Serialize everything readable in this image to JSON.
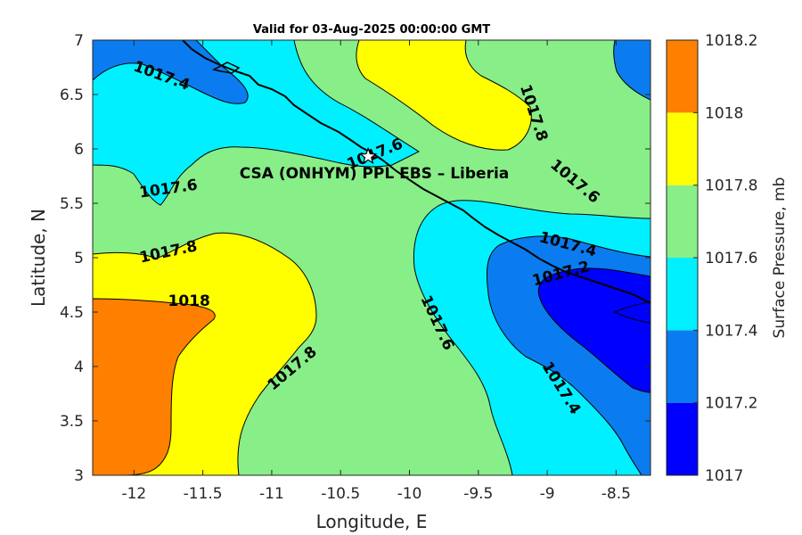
{
  "chart_data": {
    "type": "contour",
    "title": "Valid for 03-Aug-2025 00:00:00 GMT",
    "xlabel": "Longitude, E",
    "ylabel": "Latitude, N",
    "xlim": [
      -12.3,
      -8.25
    ],
    "ylim": [
      3,
      7
    ],
    "xticks": [
      -12,
      -11.5,
      -11,
      -10.5,
      -10,
      -9.5,
      -9,
      -8.5
    ],
    "yticks": [
      3,
      3.5,
      4,
      4.5,
      5,
      5.5,
      6,
      6.5,
      7
    ],
    "colorbar": {
      "label": "Surface Pressure, mb",
      "levels": [
        1017,
        1017.2,
        1017.4,
        1017.6,
        1017.8,
        1018,
        1018.2
      ],
      "colors": [
        "#0000ff",
        "#0a7cf0",
        "#00f0ff",
        "#88ee88",
        "#ffff00",
        "#ff8000",
        "#ff0000"
      ]
    },
    "contour_labels": [
      {
        "text": "1017.4",
        "lon": -11.8,
        "lat": 6.67,
        "angle": 20
      },
      {
        "text": "1017.6",
        "lon": -11.75,
        "lat": 5.63,
        "angle": -8
      },
      {
        "text": "1017.8",
        "lon": -11.75,
        "lat": 5.05,
        "angle": -12
      },
      {
        "text": "1018",
        "lon": -11.6,
        "lat": 4.6,
        "angle": 0
      },
      {
        "text": "1017.8",
        "lon": -10.85,
        "lat": 3.98,
        "angle": -40
      },
      {
        "text": "1017.6",
        "lon": -10.25,
        "lat": 5.95,
        "angle": -22
      },
      {
        "text": "1017.8",
        "lon": -9.1,
        "lat": 6.33,
        "angle": 72
      },
      {
        "text": "1017.6",
        "lon": -8.8,
        "lat": 5.7,
        "angle": 40
      },
      {
        "text": "1017.6",
        "lon": -9.8,
        "lat": 4.4,
        "angle": 65
      },
      {
        "text": "1017.4",
        "lon": -8.85,
        "lat": 5.12,
        "angle": 15
      },
      {
        "text": "1017.2",
        "lon": -8.9,
        "lat": 4.85,
        "angle": -15
      },
      {
        "text": "1017.4",
        "lon": -8.9,
        "lat": 3.8,
        "angle": 58
      }
    ],
    "site": {
      "name": "CSA (ONHYM) PPL EBS  – Liberia",
      "lon": -10.3,
      "lat": 5.93,
      "marker": "star"
    }
  }
}
